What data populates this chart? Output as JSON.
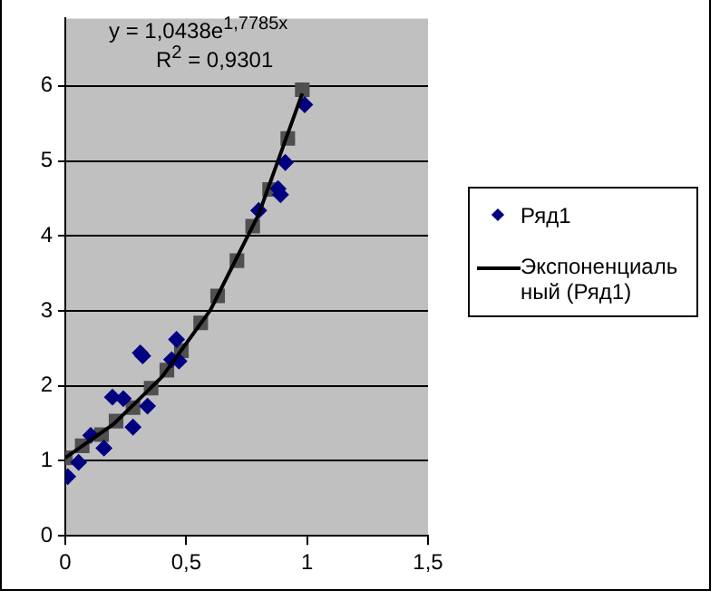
{
  "chart_data": {
    "type": "scatter",
    "xlim": [
      0,
      1.5
    ],
    "xticks": [
      0,
      {
        "value": 0.5,
        "label": "0,5"
      },
      1,
      {
        "value": 1.5,
        "label": "1,5"
      }
    ],
    "ylim": [
      0,
      6.9
    ],
    "yticks": [
      0,
      1,
      2,
      3,
      4,
      5,
      6
    ],
    "grid": "y",
    "legend": "right",
    "marker": "diamond",
    "annotations": [
      "y = 1,0438e$^{1,7785x}$",
      "R$^{2}$ = 0,9301"
    ],
    "series": [
      {
        "name": "Ряд1",
        "color": "#000080",
        "x": [
          0.01,
          0.055,
          0.105,
          0.16,
          0.195,
          0.24,
          0.28,
          0.31,
          0.32,
          0.34,
          0.44,
          0.46,
          0.47,
          0.8,
          0.88,
          0.89,
          0.91,
          0.99
        ],
        "values": [
          0.79,
          0.98,
          1.34,
          1.17,
          1.85,
          1.83,
          1.45,
          2.44,
          2.4,
          1.73,
          2.35,
          2.62,
          2.33,
          4.34,
          4.63,
          4.55,
          4.98,
          5.75
        ]
      },
      {
        "color": "#505050",
        "marker": "square",
        "x": [
          0,
          0.07,
          0.15,
          0.21,
          0.28,
          0.355,
          0.42,
          0.48,
          0.56,
          0.63,
          0.71,
          0.775,
          0.845,
          0.92,
          0.98
        ],
        "values": [
          1.04,
          1.2,
          1.35,
          1.53,
          1.71,
          1.97,
          2.21,
          2.47,
          2.84,
          3.2,
          3.67,
          4.13,
          4.62,
          5.3,
          5.95
        ]
      },
      {
        "type": "line",
        "name": "Экспоненциальный (Ряд1)",
        "color": "#000000",
        "marker": "none",
        "line_style": "solid",
        "x": [
          0,
          0.2,
          0.4,
          0.6,
          0.8,
          0.98
        ],
        "values": [
          1.04,
          1.49,
          2.12,
          3.01,
          4.29,
          5.9
        ]
      }
    ]
  }
}
